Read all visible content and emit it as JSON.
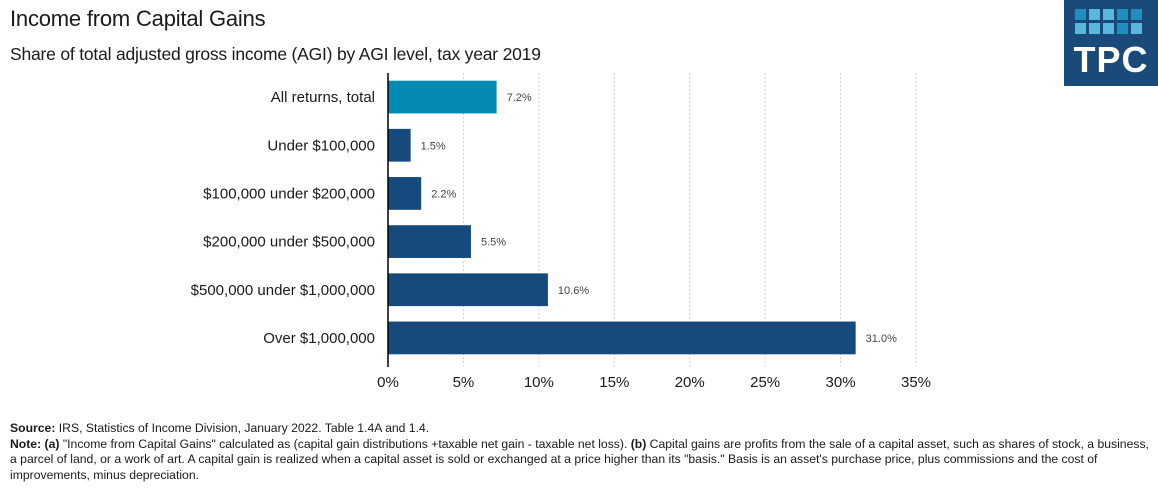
{
  "header": {
    "title": "Income from Capital Gains",
    "subtitle": "Share of total adjusted gross income (AGI) by AGI level, tax year 2019"
  },
  "logo": {
    "text": "TPC",
    "background": "#1a4a7a",
    "square_colors": [
      "#1f8fc0",
      "#5ab7dd",
      "#5ab7dd",
      "#1f8fc0",
      "#1f8fc0",
      "#5ab7dd",
      "#5ab7dd",
      "#5ab7dd",
      "#1f8fc0",
      "#5ab7dd"
    ]
  },
  "chart_data": {
    "type": "bar",
    "orientation": "horizontal",
    "title": "Income from Capital Gains",
    "subtitle": "Share of total adjusted gross income (AGI) by AGI level, tax year 2019",
    "categories": [
      "All returns, total",
      "Under $100,000",
      "$100,000 under $200,000",
      "$200,000 under $500,000",
      "$500,000 under $1,000,000",
      "Over $1,000,000"
    ],
    "values": [
      7.2,
      1.5,
      2.2,
      5.5,
      10.6,
      31.0
    ],
    "value_labels": [
      "7.2%",
      "1.5%",
      "2.2%",
      "5.5%",
      "10.6%",
      "31.0%"
    ],
    "bar_colors": [
      "#038bb3",
      "#174a7c",
      "#174a7c",
      "#174a7c",
      "#174a7c",
      "#174a7c"
    ],
    "xlabel": "",
    "ylabel": "",
    "xlim": [
      0,
      35
    ],
    "x_ticks": [
      0,
      5,
      10,
      15,
      20,
      25,
      30,
      35
    ],
    "x_tick_labels": [
      "0%",
      "5%",
      "10%",
      "15%",
      "20%",
      "25%",
      "30%",
      "35%"
    ],
    "grid": "vertical dotted",
    "legend": "none"
  },
  "footer": {
    "source_label": "Source:",
    "source_text": " IRS, Statistics of Income Division,  January 2022. Table 1.4A and 1.4.",
    "note_label": "Note:",
    "note_a_label": "(a)",
    "note_a_text": " \"Income from Capital Gains\" calculated as (capital gain distributions  +taxable net gain - taxable net loss). ",
    "note_b_label": "(b)",
    "note_b_text": " Capital gains are profits  from the sale of a capital asset, such as shares of stock, a business, a parcel of land, or a work of art. A capital gain is realized  when a capital asset is sold or exchanged at a price  higher than its \"basis.\"  Basis is an asset's purchase  price, plus  commissions  and the cost of improvements, minus depreciation."
  }
}
